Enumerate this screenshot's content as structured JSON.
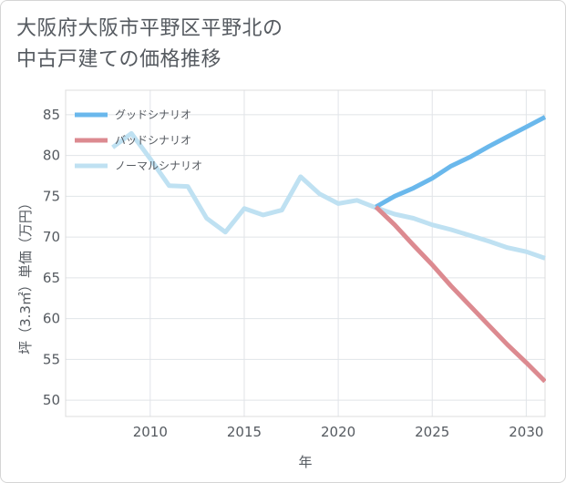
{
  "title_lines": [
    "大阪府大阪市平野区平野北の",
    "中古戸建ての価格推移"
  ],
  "chart_data": {
    "type": "line",
    "title": "大阪府大阪市平野区平野北の中古戸建ての価格推移",
    "xlabel": "年",
    "ylabel": "坪（3.3㎡）単価（万円）",
    "xlim": [
      2005.5,
      2031
    ],
    "ylim": [
      48,
      88
    ],
    "xticks": [
      2010,
      2015,
      2020,
      2025,
      2030
    ],
    "yticks": [
      50,
      55,
      60,
      65,
      70,
      75,
      80,
      85
    ],
    "grid": true,
    "legend_position": "top-left",
    "series": [
      {
        "name": "グッドシナリオ",
        "color": "#6ab8ec",
        "x": [
          2022,
          2023,
          2024,
          2025,
          2026,
          2027,
          2028,
          2029,
          2030,
          2031
        ],
        "y": [
          73.7,
          75.0,
          76.0,
          77.2,
          78.7,
          79.8,
          81.1,
          82.3,
          83.5,
          84.7
        ]
      },
      {
        "name": "バッドシナリオ",
        "color": "#dc8a90",
        "x": [
          2022,
          2023,
          2024,
          2025,
          2026,
          2027,
          2028,
          2029,
          2030,
          2031
        ],
        "y": [
          73.7,
          71.5,
          69.0,
          66.6,
          64.0,
          61.6,
          59.2,
          56.8,
          54.6,
          52.3
        ]
      },
      {
        "name": "ノーマルシナリオ",
        "color": "#bfe1f2",
        "x": [
          2008,
          2009,
          2010,
          2011,
          2012,
          2013,
          2014,
          2015,
          2016,
          2017,
          2018,
          2019,
          2020,
          2021,
          2022,
          2023,
          2024,
          2025,
          2026,
          2027,
          2028,
          2029,
          2030,
          2031
        ],
        "y": [
          81.0,
          82.7,
          79.6,
          76.3,
          76.2,
          72.3,
          70.6,
          73.5,
          72.7,
          73.3,
          77.4,
          75.3,
          74.1,
          74.5,
          73.6,
          72.8,
          72.3,
          71.5,
          70.9,
          70.2,
          69.5,
          68.7,
          68.2,
          67.4
        ]
      }
    ]
  }
}
